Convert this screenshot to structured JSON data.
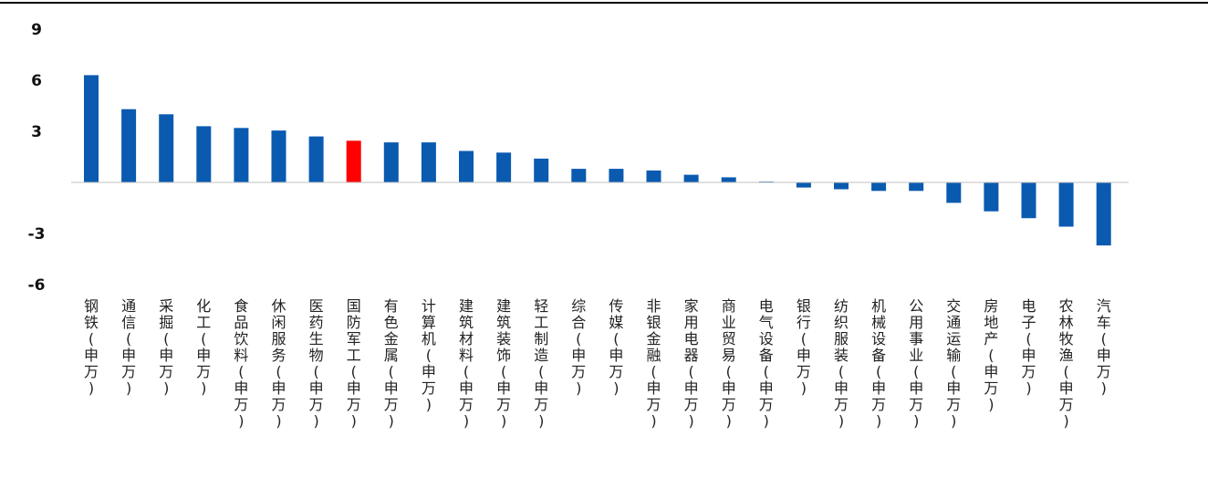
{
  "chart_data": {
    "type": "bar",
    "title": "",
    "xlabel": "",
    "ylabel": "",
    "ylim": [
      -6,
      9
    ],
    "yticks": [
      9,
      6,
      3,
      -3,
      -6
    ],
    "grid": false,
    "legend": "none",
    "colors": {
      "default": "#0a5ab0",
      "highlight": "#ff0000",
      "axis": "#c0c0c0",
      "top_rule": "#000000"
    },
    "highlight_category": "国防军工(申万)",
    "categories": [
      "钢铁(申万)",
      "通信(申万)",
      "采掘(申万)",
      "化工(申万)",
      "食品饮料(申万)",
      "休闲服务(申万)",
      "医药生物(申万)",
      "国防军工(申万)",
      "有色金属(申万)",
      "计算机(申万)",
      "建筑材料(申万)",
      "建筑装饰(申万)",
      "轻工制造(申万)",
      "综合(申万)",
      "传媒(申万)",
      "非银金融(申万)",
      "家用电器(申万)",
      "商业贸易(申万)",
      "电气设备(申万)",
      "银行(申万)",
      "纺织服装(申万)",
      "机械设备(申万)",
      "公用事业(申万)",
      "交通运输(申万)",
      "房地产(申万)",
      "电子(申万)",
      "农林牧渔(申万)",
      "汽车(申万)"
    ],
    "values": [
      6.3,
      4.3,
      4.0,
      3.3,
      3.2,
      3.05,
      2.7,
      2.45,
      2.35,
      2.35,
      1.85,
      1.75,
      1.4,
      0.8,
      0.8,
      0.7,
      0.45,
      0.3,
      0.05,
      -0.3,
      -0.4,
      -0.5,
      -0.5,
      -1.2,
      -1.7,
      -2.1,
      -2.6,
      -3.7
    ]
  }
}
